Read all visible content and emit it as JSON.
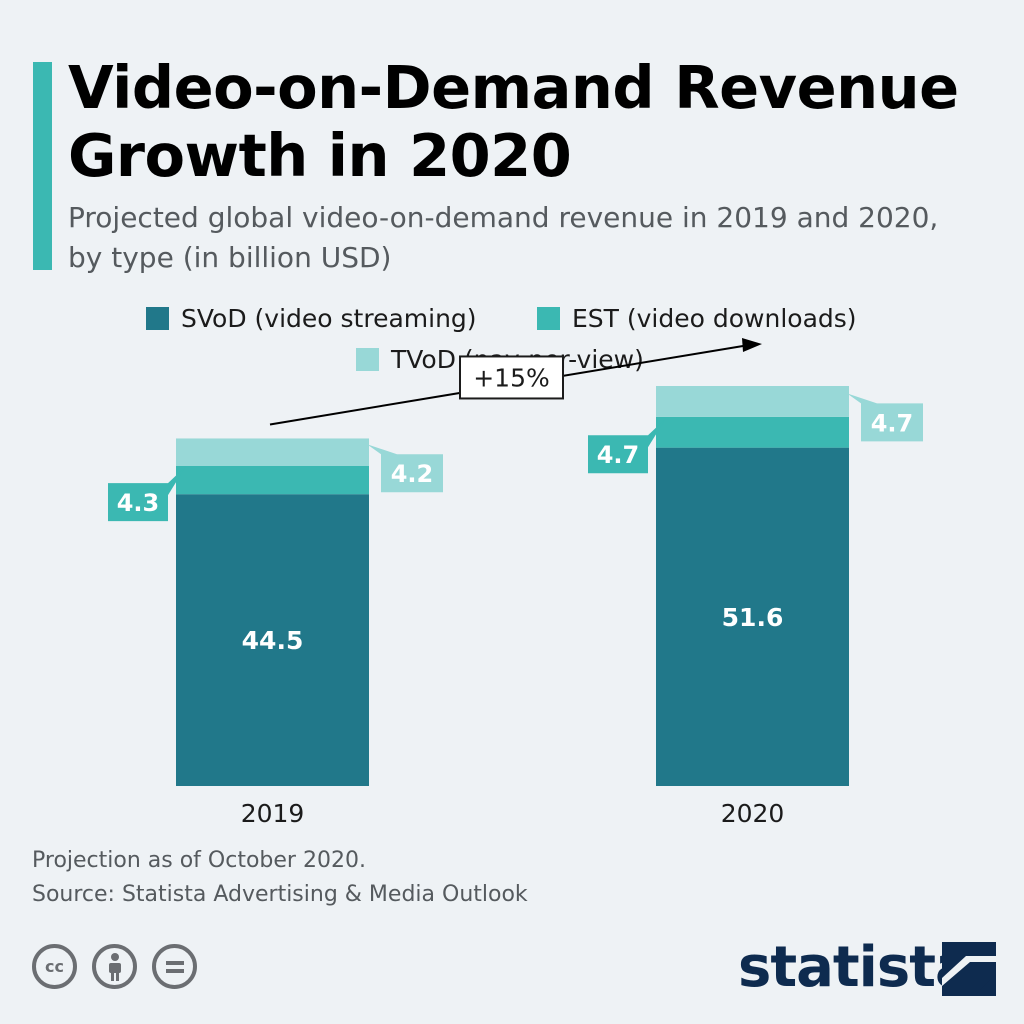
{
  "title": "Video-on-Demand Revenue Growth in 2020",
  "subtitle": "Projected global video-on-demand revenue in 2019 and 2020, by type (in billion USD)",
  "colors": {
    "svod": "#21788a",
    "est": "#3bb8b2",
    "tvod": "#98d8d7",
    "accent": "#3bb8b2",
    "brand": "#0e2b4f"
  },
  "legend": {
    "svod": "SVoD (video streaming)",
    "est": "EST (video downloads)",
    "tvod": "TVoD (pay-per-view)"
  },
  "chart_data": {
    "type": "bar",
    "stacked": true,
    "categories": [
      "2019",
      "2020"
    ],
    "series": [
      {
        "name": "SVoD (video streaming)",
        "values": [
          44.5,
          51.6
        ]
      },
      {
        "name": "EST (video downloads)",
        "values": [
          4.3,
          4.7
        ]
      },
      {
        "name": "TVoD (pay-per-view)",
        "values": [
          4.2,
          4.7
        ]
      }
    ],
    "data_labels": {
      "svod": [
        "44.5",
        "51.6"
      ],
      "est": [
        "4.3",
        "4.7"
      ],
      "tvod": [
        "4.2",
        "4.7"
      ]
    },
    "growth_annotation": "+15%",
    "ylim": [
      0,
      61
    ]
  },
  "footnotes": {
    "note": "Projection as of October 2020.",
    "source": "Source: Statista Advertising & Media Outlook"
  },
  "license_icons": [
    "creative-commons-icon",
    "attribution-icon",
    "no-derivatives-icon"
  ],
  "brand": {
    "name": "statista"
  }
}
